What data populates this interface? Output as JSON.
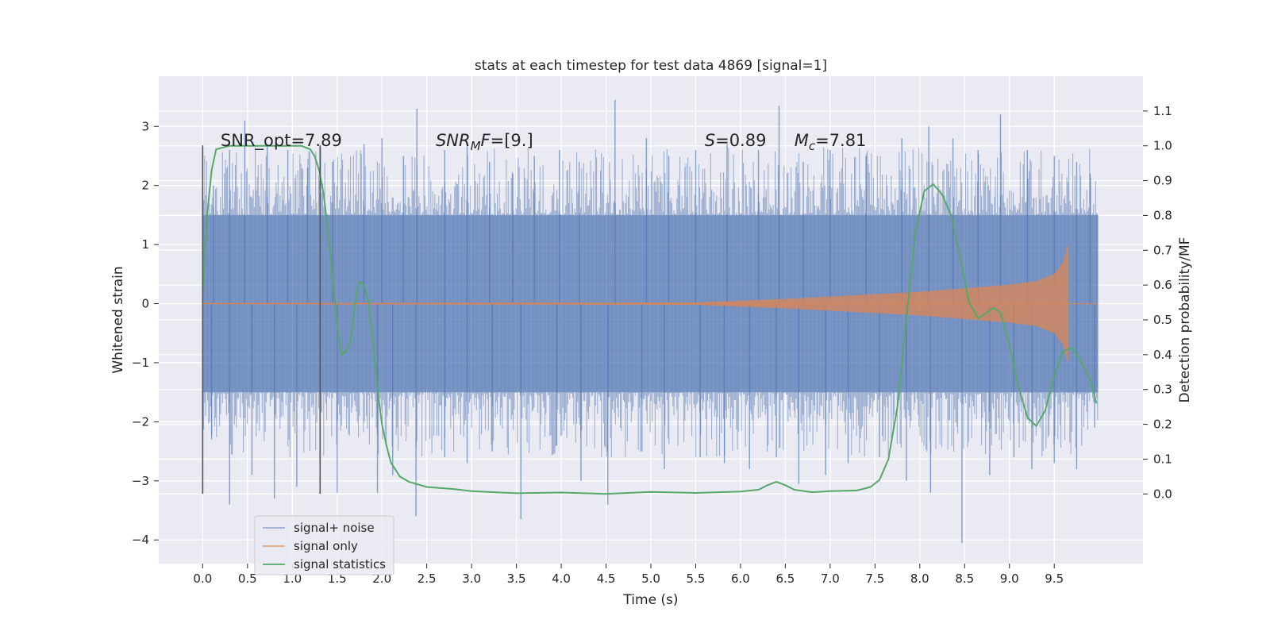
{
  "chart_data": {
    "type": "line",
    "title": "stats at each timestep for test data 4869 [signal=1]",
    "xlabel": "Time (s)",
    "ylabel": "Whitened strain",
    "y2label": "Detection probability/MF",
    "xlim": [
      -0.49,
      10.49
    ],
    "ylim": [
      -4.4,
      3.85
    ],
    "y2lim": [
      -0.2,
      1.2
    ],
    "x_ticks": [
      0.0,
      0.5,
      1.0,
      1.5,
      2.0,
      2.5,
      3.0,
      3.5,
      4.0,
      4.5,
      5.0,
      5.5,
      6.0,
      6.5,
      7.0,
      7.5,
      8.0,
      8.5,
      9.0,
      9.5
    ],
    "x_tick_labels": [
      "0.0",
      "0.5",
      "1.0",
      "1.5",
      "2.0",
      "2.5",
      "3.0",
      "3.5",
      "4.0",
      "4.5",
      "5.0",
      "5.5",
      "6.0",
      "6.5",
      "7.0",
      "7.5",
      "8.0",
      "8.5",
      "9.0",
      "9.5"
    ],
    "y_ticks": [
      3,
      2,
      1,
      0,
      -1,
      -2,
      -3,
      -4
    ],
    "y_tick_labels": [
      "3",
      "2",
      "1",
      "0",
      "−1",
      "−2",
      "−3",
      "−4"
    ],
    "y2_ticks": [
      1.1,
      1.0,
      0.9,
      0.8,
      0.7,
      0.6,
      0.5,
      0.4,
      0.3,
      0.2,
      0.1,
      0.0
    ],
    "y2_tick_labels": [
      "1.1",
      "1.0",
      "0.9",
      "0.8",
      "0.7",
      "0.6",
      "0.5",
      "0.4",
      "0.3",
      "0.2",
      "0.1",
      "0.0"
    ],
    "grid": true,
    "legend_position": "lower-left",
    "vlines": [
      {
        "x": 0.0,
        "ymin": -3.22,
        "ymax": 2.68
      },
      {
        "x": 1.31,
        "ymin": -3.22,
        "ymax": 2.68
      }
    ],
    "annotations": [
      {
        "x": 0.2,
        "parts": [
          {
            "t": "SNR_opt=7.89",
            "style": "normal"
          }
        ]
      },
      {
        "x": 2.6,
        "parts": [
          {
            "t": "SNR",
            "style": "italic"
          },
          {
            "t": "M",
            "style": "italic-sub"
          },
          {
            "t": "F",
            "style": "italic"
          },
          {
            "t": "=[9.]",
            "style": "normal"
          }
        ]
      },
      {
        "x": 5.6,
        "parts": [
          {
            "t": "S",
            "style": "italic"
          },
          {
            "t": "=0.89",
            "style": "normal"
          }
        ]
      },
      {
        "x": 6.6,
        "parts": [
          {
            "t": "M",
            "style": "italic"
          },
          {
            "t": "c",
            "style": "italic-sub"
          },
          {
            "t": "=7.81",
            "style": "normal"
          }
        ]
      }
    ],
    "series": [
      {
        "name": "signal+ noise",
        "axis": "left",
        "color": "#4c72b0",
        "opacity": 0.5,
        "x_range": [
          0.0,
          9.99
        ],
        "core_band": [
          -1.5,
          1.5
        ],
        "upper_spikes": [
          [
            0.12,
            2.0
          ],
          [
            0.3,
            2.6
          ],
          [
            0.47,
            3.1
          ],
          [
            0.72,
            2.7
          ],
          [
            0.95,
            2.6
          ],
          [
            1.17,
            2.3
          ],
          [
            1.45,
            2.4
          ],
          [
            1.8,
            2.7
          ],
          [
            2.0,
            2.8
          ],
          [
            2.24,
            2.5
          ],
          [
            2.39,
            3.3
          ],
          [
            2.7,
            2.6
          ],
          [
            2.95,
            2.7
          ],
          [
            3.2,
            2.4
          ],
          [
            3.46,
            2.2
          ],
          [
            3.7,
            2.5
          ],
          [
            3.98,
            2.6
          ],
          [
            4.2,
            2.4
          ],
          [
            4.6,
            3.45
          ],
          [
            4.95,
            2.8
          ],
          [
            5.2,
            2.5
          ],
          [
            5.5,
            2.6
          ],
          [
            5.85,
            2.7
          ],
          [
            6.2,
            2.6
          ],
          [
            6.43,
            3.35
          ],
          [
            6.7,
            2.4
          ],
          [
            7.0,
            2.6
          ],
          [
            7.4,
            2.5
          ],
          [
            7.8,
            2.8
          ],
          [
            8.1,
            3.0
          ],
          [
            8.37,
            2.8
          ],
          [
            8.65,
            2.6
          ],
          [
            8.9,
            3.2
          ],
          [
            9.2,
            2.6
          ],
          [
            9.5,
            2.5
          ],
          [
            9.75,
            2.4
          ],
          [
            9.9,
            2.2
          ]
        ],
        "lower_spikes": [
          [
            0.1,
            -2.3
          ],
          [
            0.3,
            -3.4
          ],
          [
            0.55,
            -2.9
          ],
          [
            0.8,
            -3.3
          ],
          [
            1.05,
            -3.1
          ],
          [
            1.5,
            -3.2
          ],
          [
            1.95,
            -3.2
          ],
          [
            2.12,
            -2.9
          ],
          [
            2.38,
            -3.6
          ],
          [
            2.7,
            -2.6
          ],
          [
            2.95,
            -2.7
          ],
          [
            3.23,
            -2.5
          ],
          [
            3.55,
            -3.65
          ],
          [
            3.95,
            -2.4
          ],
          [
            4.22,
            -3.0
          ],
          [
            4.52,
            -3.4
          ],
          [
            4.9,
            -2.5
          ],
          [
            5.15,
            -2.8
          ],
          [
            5.55,
            -2.6
          ],
          [
            5.82,
            -2.7
          ],
          [
            6.1,
            -2.8
          ],
          [
            6.4,
            -2.6
          ],
          [
            6.65,
            -3.05
          ],
          [
            6.95,
            -2.9
          ],
          [
            7.2,
            -2.7
          ],
          [
            7.55,
            -2.6
          ],
          [
            7.85,
            -3.0
          ],
          [
            8.12,
            -3.2
          ],
          [
            8.47,
            -4.05
          ],
          [
            8.78,
            -2.9
          ],
          [
            9.05,
            -2.6
          ],
          [
            9.25,
            -2.8
          ],
          [
            9.5,
            -2.7
          ],
          [
            9.75,
            -2.8
          ],
          [
            9.95,
            -2.1
          ]
        ]
      },
      {
        "name": "signal only",
        "axis": "left",
        "color": "#dd8452",
        "opacity": 0.7,
        "x_range": [
          0.0,
          9.66
        ],
        "envelope": [
          [
            0.0,
            0.01
          ],
          [
            5.5,
            0.02
          ],
          [
            6.0,
            0.05
          ],
          [
            6.5,
            0.08
          ],
          [
            7.0,
            0.12
          ],
          [
            7.5,
            0.16
          ],
          [
            8.0,
            0.2
          ],
          [
            8.5,
            0.26
          ],
          [
            9.0,
            0.32
          ],
          [
            9.3,
            0.38
          ],
          [
            9.5,
            0.5
          ],
          [
            9.6,
            0.7
          ],
          [
            9.65,
            1.0
          ]
        ]
      },
      {
        "name": "signal statistics",
        "axis": "right",
        "color": "#55a868",
        "opacity": 1.0,
        "points": [
          [
            0.0,
            0.58
          ],
          [
            0.05,
            0.8
          ],
          [
            0.1,
            0.93
          ],
          [
            0.15,
            0.99
          ],
          [
            0.3,
            1.0
          ],
          [
            0.5,
            1.0
          ],
          [
            0.8,
            1.0
          ],
          [
            1.0,
            1.0
          ],
          [
            1.1,
            1.0
          ],
          [
            1.2,
            0.99
          ],
          [
            1.25,
            0.97
          ],
          [
            1.3,
            0.93
          ],
          [
            1.35,
            0.86
          ],
          [
            1.4,
            0.75
          ],
          [
            1.45,
            0.62
          ],
          [
            1.5,
            0.48
          ],
          [
            1.55,
            0.4
          ],
          [
            1.6,
            0.41
          ],
          [
            1.65,
            0.44
          ],
          [
            1.7,
            0.55
          ],
          [
            1.75,
            0.61
          ],
          [
            1.8,
            0.6
          ],
          [
            1.85,
            0.55
          ],
          [
            1.9,
            0.44
          ],
          [
            1.95,
            0.3
          ],
          [
            2.0,
            0.2
          ],
          [
            2.05,
            0.14
          ],
          [
            2.1,
            0.09
          ],
          [
            2.2,
            0.05
          ],
          [
            2.3,
            0.035
          ],
          [
            2.5,
            0.02
          ],
          [
            2.8,
            0.014
          ],
          [
            3.0,
            0.008
          ],
          [
            3.5,
            0.002
          ],
          [
            4.0,
            0.004
          ],
          [
            4.5,
            0.0
          ],
          [
            5.0,
            0.006
          ],
          [
            5.5,
            0.003
          ],
          [
            6.0,
            0.007
          ],
          [
            6.2,
            0.012
          ],
          [
            6.3,
            0.025
          ],
          [
            6.4,
            0.035
          ],
          [
            6.5,
            0.025
          ],
          [
            6.6,
            0.012
          ],
          [
            6.8,
            0.005
          ],
          [
            7.0,
            0.008
          ],
          [
            7.3,
            0.01
          ],
          [
            7.45,
            0.02
          ],
          [
            7.55,
            0.04
          ],
          [
            7.65,
            0.1
          ],
          [
            7.75,
            0.25
          ],
          [
            7.85,
            0.5
          ],
          [
            7.95,
            0.75
          ],
          [
            8.05,
            0.87
          ],
          [
            8.15,
            0.89
          ],
          [
            8.25,
            0.86
          ],
          [
            8.35,
            0.8
          ],
          [
            8.45,
            0.68
          ],
          [
            8.55,
            0.55
          ],
          [
            8.65,
            0.505
          ],
          [
            8.75,
            0.52
          ],
          [
            8.82,
            0.535
          ],
          [
            8.9,
            0.52
          ],
          [
            9.0,
            0.43
          ],
          [
            9.1,
            0.31
          ],
          [
            9.2,
            0.22
          ],
          [
            9.3,
            0.195
          ],
          [
            9.4,
            0.24
          ],
          [
            9.5,
            0.34
          ],
          [
            9.6,
            0.41
          ],
          [
            9.7,
            0.42
          ],
          [
            9.8,
            0.38
          ],
          [
            9.9,
            0.33
          ],
          [
            9.97,
            0.26
          ]
        ]
      }
    ]
  }
}
